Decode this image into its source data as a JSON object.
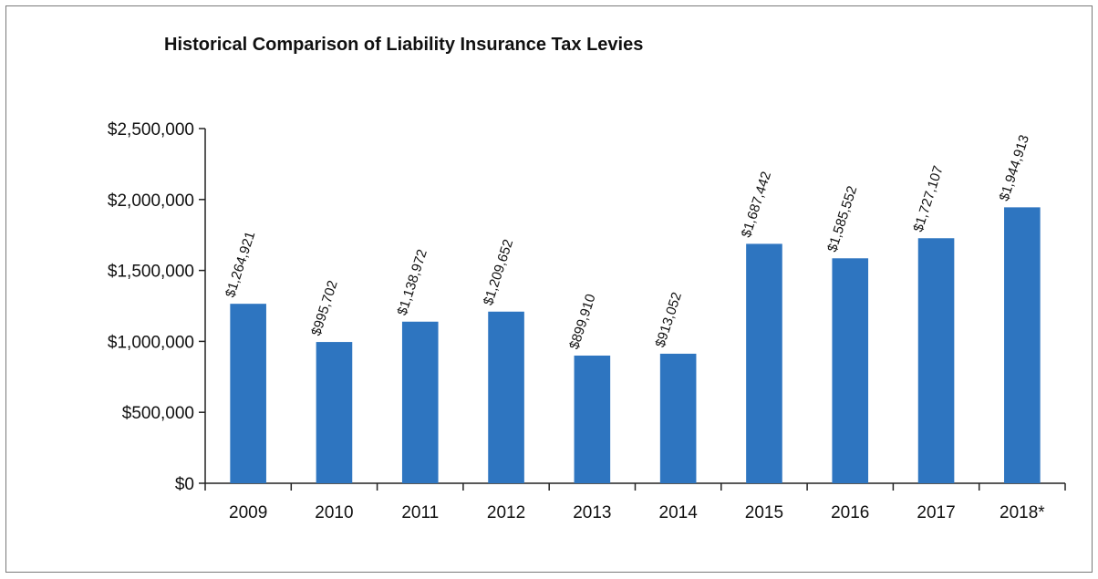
{
  "chart_data": {
    "type": "bar",
    "title": "Historical Comparison of Liability Insurance Tax Levies",
    "xlabel": "",
    "ylabel": "",
    "categories": [
      "2009",
      "2010",
      "2011",
      "2012",
      "2013",
      "2014",
      "2015",
      "2016",
      "2017",
      "2018*"
    ],
    "values": [
      1264921,
      995702,
      1138972,
      1209652,
      899910,
      913052,
      1687442,
      1585552,
      1727107,
      1944913
    ],
    "data_labels": [
      "$1,264,921",
      "$995,702",
      "$1,138,972",
      "$1,209,652",
      "$899,910",
      "$913,052",
      "$1,687,442",
      "$1,585,552",
      "$1,727,107",
      "$1,944,913"
    ],
    "ylim": [
      0,
      2500000
    ],
    "yticks": [
      0,
      500000,
      1000000,
      1500000,
      2000000,
      2500000
    ],
    "ytick_labels": [
      "$0",
      "$500,000",
      "$1,000,000",
      "$1,500,000",
      "$2,000,000",
      "$2,500,000"
    ],
    "grid": false,
    "legend": "none",
    "bar_color": "#2e75c0"
  }
}
